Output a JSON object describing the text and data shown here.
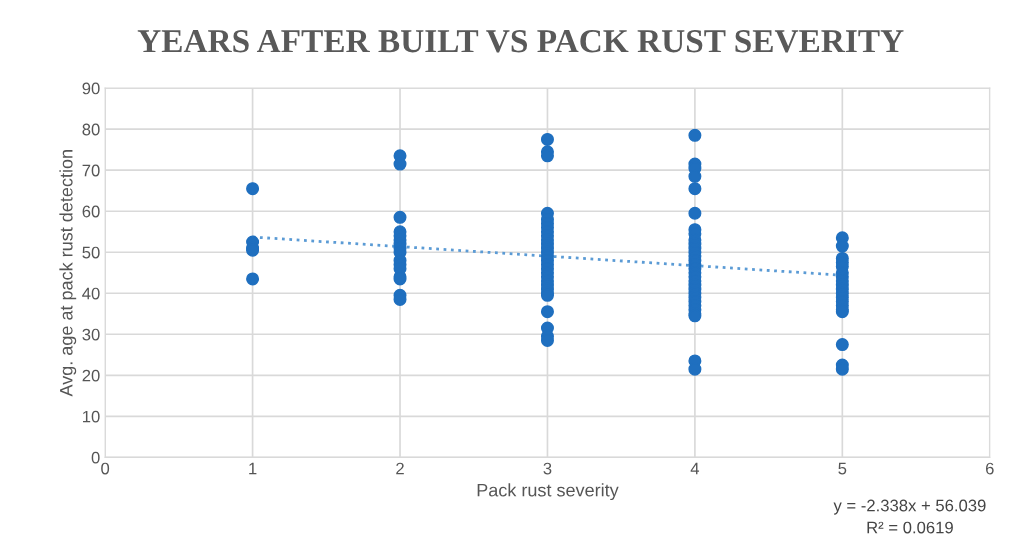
{
  "chart_data": {
    "type": "scatter",
    "title": "YEARS AFTER BUILT VS PACK RUST SEVERITY",
    "xlabel": "Pack rust severity",
    "ylabel": "Avg. age at pack rust detection",
    "xlim": [
      0,
      6
    ],
    "xticks": [
      0,
      1,
      2,
      3,
      4,
      5,
      6
    ],
    "ylim": [
      0,
      90
    ],
    "yticks": [
      0,
      10,
      20,
      30,
      40,
      50,
      60,
      70,
      80,
      90
    ],
    "grid": true,
    "legend": false,
    "marker": "circle",
    "series": [
      {
        "color": "#1f6fbf",
        "x": [
          1,
          1,
          1,
          1,
          1,
          2,
          2,
          2,
          2,
          2,
          2,
          2,
          2,
          2,
          2,
          2,
          2,
          2,
          2,
          2,
          2,
          3,
          3,
          3,
          3,
          3,
          3,
          3,
          3,
          3,
          3,
          3,
          3,
          3,
          3,
          3,
          3,
          3,
          3,
          3,
          3,
          3,
          3,
          3,
          3,
          3,
          3,
          3,
          3,
          4,
          4,
          4,
          4,
          4,
          4,
          4,
          4,
          4,
          4,
          4,
          4,
          4,
          4,
          4,
          4,
          4,
          4,
          4,
          4,
          4,
          4,
          4,
          4,
          4,
          4,
          4,
          4,
          4,
          4,
          5,
          5,
          5,
          5,
          5,
          5,
          5,
          5,
          5,
          5,
          5,
          5,
          5,
          5,
          5,
          5,
          5,
          5,
          5
        ],
        "values": [
          65.5,
          52.5,
          51,
          50.5,
          43.5,
          73.5,
          71.5,
          58.5,
          55,
          54,
          53,
          52,
          51,
          50,
          48,
          47,
          46,
          44,
          43.5,
          39.5,
          38.5,
          77.5,
          74.5,
          73.5,
          59.5,
          58,
          57,
          56,
          55,
          54,
          53,
          52,
          51,
          50,
          49,
          48,
          47,
          46,
          45,
          44,
          43,
          42,
          41,
          40,
          39.5,
          35.5,
          31.5,
          29.5,
          28.5,
          78.5,
          71.5,
          70.5,
          68.5,
          65.5,
          59.5,
          55.5,
          54.5,
          53,
          52,
          51,
          50,
          49,
          48,
          47,
          46,
          45,
          44,
          43,
          42,
          41,
          40,
          39,
          38,
          37,
          36,
          35,
          34.5,
          23.5,
          21.5,
          53.5,
          51.5,
          48.5,
          47.5,
          46.5,
          45,
          44,
          43,
          42,
          41,
          40,
          39,
          38,
          37,
          36,
          35.5,
          27.5,
          22.5,
          21.5
        ]
      },
      {
        "type": "line",
        "color": "#5b9bd5",
        "line_style": "dotted",
        "marker": "none",
        "x": [
          1,
          5
        ],
        "values": [
          53.7,
          44.4
        ]
      }
    ],
    "annotations": [
      "y = -2.338x + 56.039",
      "R² = 0.0619"
    ]
  }
}
